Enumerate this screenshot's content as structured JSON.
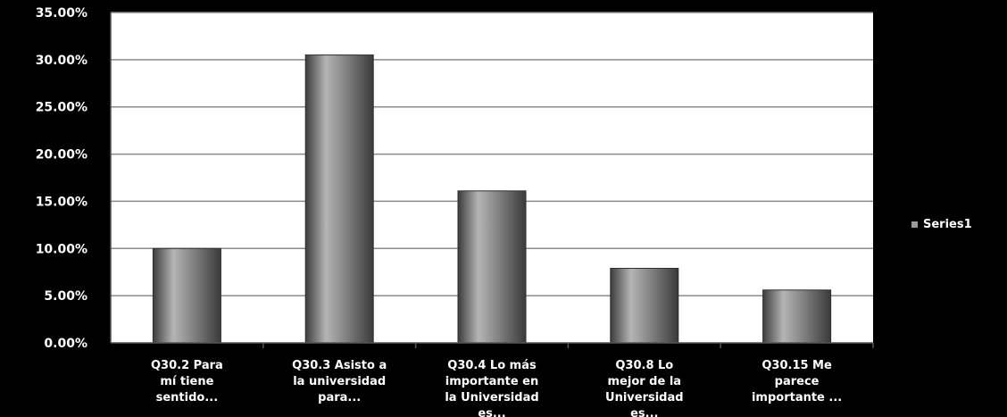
{
  "chart_data": {
    "type": "bar",
    "title": "",
    "xlabel": "",
    "ylabel": "",
    "categories": [
      [
        "Q30.2  Para",
        "mí tiene",
        "sentido..."
      ],
      [
        "Q30.3 Asisto a",
        "la universidad",
        "para..."
      ],
      [
        "Q30.4 Lo más",
        "importante en",
        "la Universidad",
        "es..."
      ],
      [
        "Q30.8 Lo",
        "mejor de la",
        "Universidad",
        "es..."
      ],
      [
        "Q30.15 Me",
        "parece",
        "importante ..."
      ]
    ],
    "series": [
      {
        "name": "Series1",
        "values": [
          0.1,
          0.305,
          0.161,
          0.079,
          0.056
        ]
      }
    ],
    "ylim": [
      0,
      0.35
    ],
    "yticks": [
      0,
      0.05,
      0.1,
      0.15,
      0.2,
      0.25,
      0.3,
      0.35
    ],
    "ytick_labels": [
      "0.00%",
      "5.00%",
      "10.00%",
      "15.00%",
      "20.00%",
      "25.00%",
      "30.00%",
      "35.00%"
    ],
    "grid": true,
    "legend": {
      "position": "right",
      "entries": [
        "Series1"
      ]
    },
    "colors": {
      "background": "#000000",
      "plot_area": "#ffffff",
      "bar": "#6e6e6e",
      "bar_highlight": "#b5b5b5",
      "grid": "#8a8a8a",
      "text": "#ffffff"
    }
  }
}
